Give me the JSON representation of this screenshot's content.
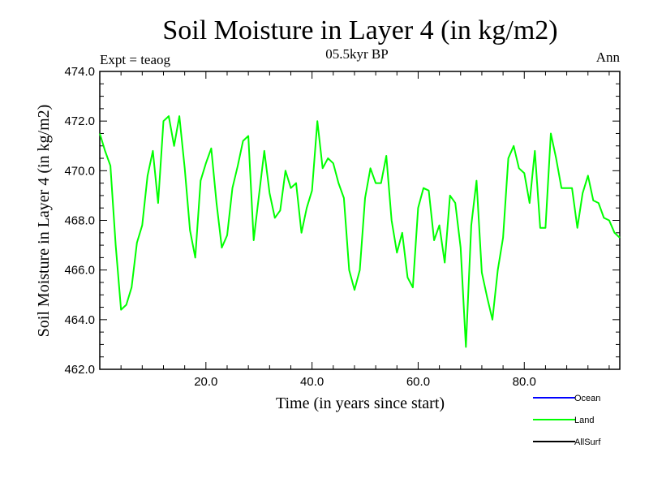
{
  "chart_data": {
    "type": "line",
    "title": "Soil Moisture in Layer 4 (in kg/m2)",
    "subtitle": "05.5kyr BP",
    "left_label": "Expt = teaog",
    "right_label": "Ann",
    "xlabel": "Time (in years since start)",
    "ylabel": "Soil Moisture in Layer 4 (in kg/m2)",
    "xlim": [
      0,
      98
    ],
    "ylim": [
      462,
      474
    ],
    "xticks": [
      20,
      40,
      60,
      80
    ],
    "xtick_labels": [
      "20.0",
      "40.0",
      "60.0",
      "80.0"
    ],
    "yticks": [
      462,
      464,
      466,
      468,
      470,
      472,
      474
    ],
    "ytick_labels": [
      "462.0",
      "464.0",
      "466.0",
      "468.0",
      "470.0",
      "472.0",
      "474.0"
    ],
    "legend": [
      {
        "name": "Ocean",
        "color": "#0000ff"
      },
      {
        "name": "Land",
        "color": "#00ff00"
      },
      {
        "name": "AllSurf",
        "color": "#000000"
      }
    ],
    "series": [
      {
        "name": "Land",
        "color": "#00ff00",
        "x": [
          0,
          1,
          2,
          3,
          4,
          5,
          6,
          7,
          8,
          9,
          10,
          11,
          12,
          13,
          14,
          15,
          16,
          17,
          18,
          19,
          20,
          21,
          22,
          23,
          24,
          25,
          26,
          27,
          28,
          29,
          30,
          31,
          32,
          33,
          34,
          35,
          36,
          37,
          38,
          39,
          40,
          41,
          42,
          43,
          44,
          45,
          46,
          47,
          48,
          49,
          50,
          51,
          52,
          53,
          54,
          55,
          56,
          57,
          58,
          59,
          60,
          61,
          62,
          63,
          64,
          65,
          66,
          67,
          68,
          69,
          70,
          71,
          72,
          73,
          74,
          75,
          76,
          77,
          78,
          79,
          80,
          81,
          82,
          83,
          84,
          85,
          86,
          87,
          88,
          89,
          90,
          91,
          92,
          93,
          94,
          95,
          96,
          97,
          98
        ],
        "values": [
          471.5,
          470.8,
          470.2,
          467.0,
          464.4,
          464.6,
          465.3,
          467.1,
          467.8,
          469.8,
          470.8,
          468.7,
          472.0,
          472.2,
          471.0,
          472.2,
          470.1,
          467.6,
          466.5,
          469.6,
          470.3,
          470.9,
          468.7,
          466.9,
          467.4,
          469.3,
          470.2,
          471.2,
          471.4,
          467.2,
          469.0,
          470.8,
          469.1,
          468.1,
          468.4,
          470.0,
          469.3,
          469.5,
          467.5,
          468.5,
          469.2,
          472.0,
          470.1,
          470.5,
          470.3,
          469.5,
          468.9,
          466.0,
          465.2,
          466.0,
          468.9,
          470.1,
          469.5,
          469.5,
          470.6,
          468.0,
          466.7,
          467.5,
          465.7,
          465.3,
          468.5,
          469.3,
          469.2,
          467.2,
          467.8,
          466.3,
          469.0,
          468.7,
          466.9,
          462.9,
          467.8,
          469.6,
          465.9,
          464.9,
          464.0,
          466.0,
          467.3,
          470.5,
          471.0,
          470.1,
          469.9,
          468.7,
          470.8,
          467.7,
          467.7,
          471.5,
          470.5,
          469.3,
          469.3,
          469.3,
          467.7,
          469.1,
          469.8,
          468.8,
          468.7,
          468.1,
          468.0,
          467.5,
          467.3
        ]
      }
    ]
  }
}
